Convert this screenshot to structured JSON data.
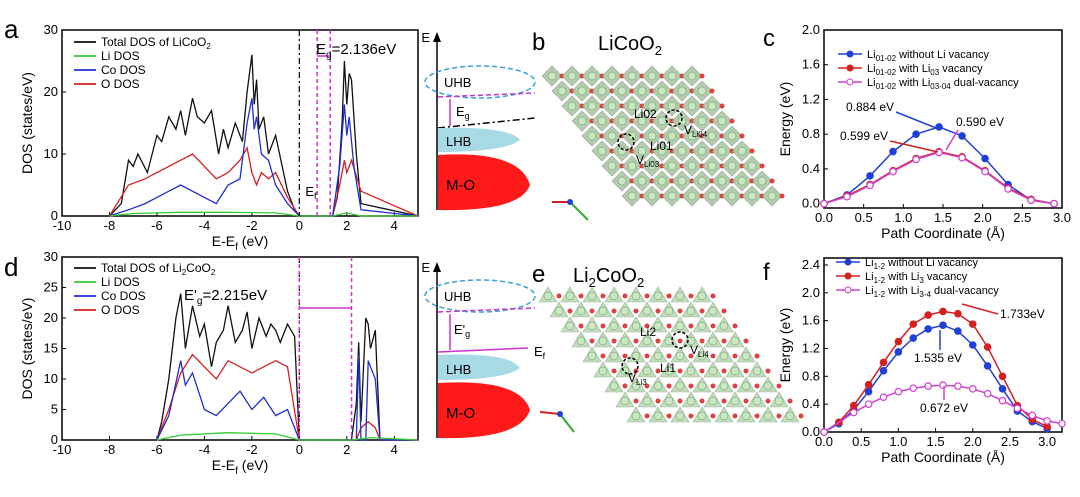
{
  "panel_letters": {
    "a": "a",
    "b": "b",
    "c": "c",
    "d": "d",
    "e": "e",
    "f": "f"
  },
  "schematic_top": {
    "E": "E",
    "uhb": "UHB",
    "eg": "E",
    "eg_sub": "g",
    "lhb": "LHB",
    "mo": "M-O"
  },
  "schematic_bottom": {
    "E": "E",
    "uhb": "UHB",
    "eg": "E'",
    "eg_sub": "g",
    "ef": "E",
    "ef_sub": "f",
    "lhb": "LHB",
    "mo": "M-O"
  },
  "structure_b": {
    "title_main": "LiCoO",
    "title_sub": "2",
    "labels": [
      "Li02",
      "Li01",
      "V",
      "V"
    ],
    "subs": [
      "",
      "",
      "Li03",
      "Li04"
    ]
  },
  "structure_e": {
    "title_main": "Li",
    "title_sub1": "2",
    "title_mid": "CoO",
    "title_sub2": "2",
    "labels": [
      "Li2",
      "Li1",
      "V",
      "V"
    ],
    "subs": [
      "",
      "",
      "Li3",
      "Li4"
    ]
  },
  "chart_data": [
    {
      "panel": "a",
      "type": "line",
      "ylabel": "DOS (states/eV)",
      "xlabel": "E-E",
      "xlabel_sub": "f",
      "xlabel_unit": " (eV)",
      "xlim": [
        -10,
        5
      ],
      "ylim": [
        0,
        30
      ],
      "xticks": [
        -10,
        -8,
        -6,
        -4,
        -2,
        0,
        2,
        4
      ],
      "yticks": [
        0,
        10,
        20,
        30
      ],
      "legend": [
        "Total DOS of LiCoO",
        "Li DOS",
        "Co DOS",
        "O DOS"
      ],
      "legend_sub": [
        "2",
        "",
        "",
        ""
      ],
      "annotation": "E",
      "annotation_sub": "g",
      "annotation_val": "=2.136eV",
      "fermi": "E",
      "fermi_sub": "f",
      "colors": {
        "total": "#111111",
        "li": "#33cc33",
        "co": "#1f2fd0",
        "o": "#d42020",
        "mark": "#cc33cc"
      },
      "gap_lines": [
        0.75,
        1.3
      ],
      "series": [
        {
          "name": "Total DOS of LiCoO2",
          "x": [
            -8,
            -7.5,
            -7.2,
            -7,
            -6.8,
            -6.4,
            -6,
            -5.8,
            -5.5,
            -5.2,
            -5,
            -4.8,
            -4.5,
            -4.3,
            -4,
            -3.7,
            -3.4,
            -3.2,
            -3,
            -2.7,
            -2.4,
            -2.2,
            -2.0,
            -1.9,
            -1.8,
            -1.7,
            -1.5,
            -1.3,
            -1.0,
            -0.5,
            -0.2,
            0,
            1.4,
            1.6,
            1.8,
            1.9,
            2.0,
            2.1,
            2.2,
            2.4,
            2.6,
            5
          ],
          "y": [
            0,
            2,
            9,
            8,
            10,
            7,
            13,
            12,
            16,
            14,
            17,
            13,
            19,
            16,
            15,
            17,
            10,
            14,
            11,
            15,
            12,
            20,
            26,
            18,
            22,
            14,
            16,
            10,
            13,
            4,
            1,
            0,
            0,
            3,
            15,
            25,
            18,
            23,
            22,
            10,
            2,
            0
          ]
        },
        {
          "name": "Li DOS",
          "x": [
            -8,
            -7,
            -5,
            -3,
            -1,
            0,
            1.4,
            2,
            2.6,
            5
          ],
          "y": [
            0,
            0.4,
            0.6,
            0.6,
            0.5,
            0,
            0,
            0.5,
            0,
            0
          ]
        },
        {
          "name": "Co DOS",
          "x": [
            -8,
            -7.2,
            -6.5,
            -6,
            -5.5,
            -5,
            -4.5,
            -4,
            -3.5,
            -3,
            -2.5,
            -2.2,
            -2.0,
            -1.9,
            -1.8,
            -1.6,
            -1.3,
            -1.0,
            -0.5,
            0,
            1.4,
            1.7,
            1.9,
            2.0,
            2.1,
            2.3,
            2.6,
            5
          ],
          "y": [
            0,
            1,
            2,
            3,
            4,
            5,
            4,
            3,
            2,
            5,
            6,
            15,
            19,
            14,
            16,
            10,
            9,
            5,
            2,
            0,
            0,
            8,
            18,
            13,
            16,
            8,
            1,
            0
          ]
        },
        {
          "name": "O DOS",
          "x": [
            -8,
            -7.2,
            -6.5,
            -6,
            -5.5,
            -5,
            -4.5,
            -4,
            -3.5,
            -3,
            -2.5,
            -2.2,
            -2.0,
            -1.9,
            -1.8,
            -1.6,
            -1.3,
            -1.0,
            -0.5,
            0,
            1.4,
            1.7,
            1.9,
            2.0,
            2.2,
            2.6,
            5
          ],
          "y": [
            0,
            5,
            6,
            7,
            8,
            9,
            10,
            8,
            6,
            7,
            9,
            11,
            7,
            6,
            5,
            7,
            6,
            7,
            3,
            0,
            0,
            5,
            9,
            7,
            9,
            4,
            0
          ]
        }
      ]
    },
    {
      "panel": "d",
      "type": "line",
      "ylabel": "DOS (states/eV)",
      "xlabel": "E-E",
      "xlabel_sub": "f",
      "xlabel_unit": " (eV)",
      "xlim": [
        -10,
        5
      ],
      "ylim": [
        0,
        30
      ],
      "xticks": [
        -10,
        -8,
        -6,
        -4,
        -2,
        0,
        2,
        4
      ],
      "yticks": [
        0,
        5,
        10,
        15,
        20,
        25,
        30
      ],
      "legend": [
        "Total DOS of Li",
        "Li DOS",
        "Co DOS",
        "O DOS"
      ],
      "legend_sub": [
        "2",
        "",
        "",
        ""
      ],
      "legend_tail": [
        "CoO",
        "",
        "",
        ""
      ],
      "legend_sub2": [
        "2",
        "",
        "",
        ""
      ],
      "annotation": "E'",
      "annotation_sub": "g",
      "annotation_val": "=2.215eV",
      "colors": {
        "total": "#111111",
        "li": "#33cc33",
        "co": "#1f2fd0",
        "o": "#d42020",
        "mark": "#cc33cc"
      },
      "gap_lines": [
        0.0,
        2.2
      ],
      "series": [
        {
          "name": "Total DOS of Li2CoO2",
          "x": [
            -6,
            -5.8,
            -5.5,
            -5.2,
            -5,
            -4.8,
            -4.5,
            -4.2,
            -4,
            -3.7,
            -3.5,
            -3.2,
            -3,
            -2.7,
            -2.4,
            -2.2,
            -2,
            -1.7,
            -1.4,
            -1.2,
            -1,
            -0.8,
            -0.5,
            -0.2,
            0,
            2.2,
            2.4,
            2.5,
            2.6,
            2.8,
            2.9,
            3.0,
            3.2,
            3.4,
            5
          ],
          "y": [
            0,
            3,
            10,
            20,
            24,
            15,
            22,
            17,
            19,
            12,
            16,
            18,
            22,
            16,
            18,
            21,
            15,
            20,
            17,
            19,
            18,
            16,
            19,
            17,
            0,
            0,
            6,
            16,
            3,
            20,
            19,
            15,
            18,
            0,
            0
          ]
        },
        {
          "name": "Li DOS",
          "x": [
            -6,
            -5,
            -3,
            -1,
            0,
            2.2,
            3,
            5
          ],
          "y": [
            0,
            0.8,
            1.2,
            1.0,
            0,
            0,
            0.4,
            0
          ]
        },
        {
          "name": "Co DOS",
          "x": [
            -6,
            -5.5,
            -5,
            -4.8,
            -4.5,
            -4,
            -3.5,
            -3,
            -2.5,
            -2,
            -1.5,
            -1,
            -0.5,
            0,
            2.4,
            2.5,
            2.6,
            2.8,
            2.9,
            3.0,
            3.2,
            3.4,
            5
          ],
          "y": [
            0,
            4,
            13,
            9,
            11,
            5,
            4,
            6,
            8,
            5,
            7,
            4,
            5,
            0,
            0,
            14,
            0,
            0,
            13,
            12,
            10,
            0,
            0
          ]
        },
        {
          "name": "O DOS",
          "x": [
            -6,
            -5.5,
            -5,
            -4.5,
            -4,
            -3.5,
            -3,
            -2.5,
            -2,
            -1.5,
            -1,
            -0.5,
            0,
            2.4,
            2.6,
            2.9,
            3.2,
            3.4,
            5
          ],
          "y": [
            0,
            5,
            11,
            14,
            12,
            10,
            13,
            12,
            11,
            12,
            13,
            12,
            0,
            0,
            2,
            3,
            2,
            0,
            0
          ]
        }
      ]
    },
    {
      "panel": "c",
      "type": "line",
      "ylabel": "Energy (eV)",
      "xlabel": "Path Coordinate (Å)",
      "xlim": [
        0,
        3.0
      ],
      "ylim": [
        -0.05,
        2.0
      ],
      "xticks": [
        0.0,
        0.5,
        1.0,
        1.5,
        2.0,
        2.5,
        3.0
      ],
      "yticks": [
        0.0,
        0.4,
        0.8,
        1.2,
        1.6,
        2.0
      ],
      "colors": {
        "s1": "#2040d8",
        "s2": "#d42020",
        "s3": "#d040d0"
      },
      "legend": [
        {
          "pre": "Li",
          "sub": "01-02",
          "post": " without Li vacancy"
        },
        {
          "pre": "Li",
          "sub": "01-02",
          "post": " with Li",
          "sub2": "03",
          "post2": " vacancy"
        },
        {
          "pre": "Li",
          "sub": "01-02",
          "post": " with Li",
          "sub2": "03-04",
          "post2": " dual-vacancy"
        }
      ],
      "annotations": [
        "0.884 eV",
        "0.599 eV",
        "0.590 eV"
      ],
      "series": [
        {
          "name": "Li01-02 without Li vacancy",
          "x": [
            0,
            0.29,
            0.58,
            0.87,
            1.16,
            1.45,
            1.74,
            2.03,
            2.32,
            2.61,
            2.9
          ],
          "y": [
            0,
            0.1,
            0.32,
            0.6,
            0.8,
            0.884,
            0.78,
            0.52,
            0.22,
            0.04,
            0
          ]
        },
        {
          "name": "Li01-02 with Li03 vacancy",
          "x": [
            0,
            0.29,
            0.58,
            0.87,
            1.16,
            1.45,
            1.74,
            2.03,
            2.32,
            2.61,
            2.9
          ],
          "y": [
            0,
            0.09,
            0.22,
            0.38,
            0.52,
            0.599,
            0.54,
            0.38,
            0.18,
            0.05,
            0
          ]
        },
        {
          "name": "Li01-02 with Li03-04 dual-vacancy",
          "x": [
            0,
            0.29,
            0.58,
            0.87,
            1.16,
            1.45,
            1.74,
            2.03,
            2.32,
            2.61,
            2.9
          ],
          "y": [
            0,
            0.08,
            0.21,
            0.37,
            0.51,
            0.59,
            0.53,
            0.37,
            0.17,
            0.04,
            0
          ]
        }
      ]
    },
    {
      "panel": "f",
      "type": "line",
      "ylabel": "Energy (eV)",
      "xlabel": "Path Coordinate (Å)",
      "xlim": [
        0,
        3.2
      ],
      "ylim": [
        0,
        2.5
      ],
      "xticks": [
        0.0,
        0.5,
        1.0,
        1.5,
        2.0,
        2.5,
        3.0
      ],
      "yticks": [
        0.0,
        0.4,
        0.8,
        1.2,
        1.6,
        2.0,
        2.4
      ],
      "colors": {
        "s1": "#2040d8",
        "s2": "#d42020",
        "s3": "#d040d0"
      },
      "legend": [
        {
          "pre": "Li",
          "sub": "1-2",
          "post": " without Li vacancy"
        },
        {
          "pre": "Li",
          "sub": "1-2",
          "post": " with Li",
          "sub2": "3",
          "post2": " vacancy"
        },
        {
          "pre": "Li",
          "sub": "1-2",
          "post": " with Li",
          "sub2": "3-4",
          "post2": " dual-vacancy"
        }
      ],
      "annotations": [
        "1.733eV",
        "1.535 eV",
        "0.672 eV"
      ],
      "series": [
        {
          "name": "Li1-2 without Li vacancy",
          "x": [
            0,
            0.2,
            0.4,
            0.6,
            0.8,
            1.0,
            1.2,
            1.4,
            1.6,
            1.8,
            2.0,
            2.2,
            2.4,
            2.6,
            2.8,
            3.0
          ],
          "y": [
            0,
            0.12,
            0.32,
            0.58,
            0.88,
            1.15,
            1.35,
            1.48,
            1.535,
            1.45,
            1.25,
            0.95,
            0.62,
            0.3,
            0.15,
            0.05
          ]
        },
        {
          "name": "Li1-2 with Li3 vacancy",
          "x": [
            0,
            0.2,
            0.4,
            0.6,
            0.8,
            1.0,
            1.2,
            1.4,
            1.6,
            1.8,
            2.0,
            2.2,
            2.4,
            2.6,
            2.8,
            3.0
          ],
          "y": [
            0,
            0.14,
            0.38,
            0.68,
            1.0,
            1.3,
            1.55,
            1.68,
            1.733,
            1.7,
            1.55,
            1.22,
            0.8,
            0.38,
            0.18,
            0.08
          ]
        },
        {
          "name": "Li1-2 with Li3-4 dual-vacancy",
          "x": [
            0,
            0.4,
            0.6,
            0.8,
            1.0,
            1.2,
            1.4,
            1.6,
            1.8,
            2.0,
            2.2,
            2.4,
            2.6,
            2.8,
            3.0,
            3.2
          ],
          "y": [
            0,
            0.28,
            0.4,
            0.5,
            0.58,
            0.63,
            0.66,
            0.672,
            0.66,
            0.62,
            0.55,
            0.45,
            0.34,
            0.24,
            0.16,
            0.12
          ]
        }
      ]
    }
  ]
}
